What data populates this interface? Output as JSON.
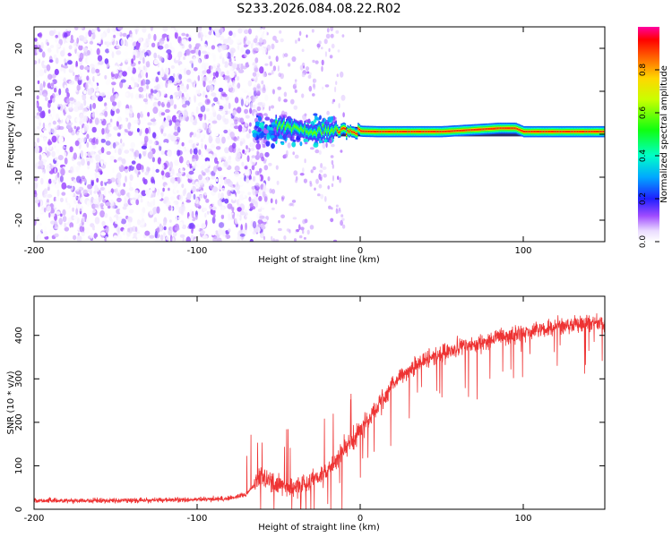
{
  "title": "S233.2026.084.08.22.R02",
  "chart_data": [
    {
      "type": "heatmap",
      "xlabel": "Height of straight line (km)",
      "ylabel": "Frequency (Hz)",
      "xlim": [
        -200,
        150
      ],
      "ylim": [
        -25,
        25
      ],
      "xticks": [
        -200,
        -100,
        0,
        100
      ],
      "yticks": [
        -20,
        -10,
        0,
        10,
        20
      ],
      "xtick_labels": [
        "-200",
        "-100",
        "0",
        "100"
      ],
      "ytick_labels": [
        "-20",
        "-10",
        "0",
        "10",
        "20"
      ],
      "colorbar": {
        "label": "Normalized spectral amplitude",
        "range": [
          0,
          1
        ],
        "ticks": [
          0.0,
          0.2,
          0.4,
          0.6,
          0.8
        ],
        "tick_labels": [
          "0.0",
          "0.2",
          "0.4",
          "0.6",
          "0.8"
        ]
      },
      "regions": [
        {
          "desc": "broadband noise",
          "x": [
            -200,
            -65
          ],
          "freq": [
            -25,
            25
          ],
          "amplitude": [
            0.0,
            0.15
          ]
        },
        {
          "desc": "transition",
          "x": [
            -65,
            -15
          ],
          "freq": [
            -6,
            6
          ],
          "amplitude": [
            0.1,
            0.4
          ]
        },
        {
          "desc": "carrier line",
          "x": [
            -15,
            150
          ],
          "freq": [
            -1,
            1.5
          ],
          "amplitude": [
            0.3,
            0.95
          ]
        }
      ],
      "carrier_center_points": [
        {
          "x": -50,
          "freq": 2.0
        },
        {
          "x": -40,
          "freq": 1.5
        },
        {
          "x": -30,
          "freq": 0.5
        },
        {
          "x": -20,
          "freq": 1.0
        },
        {
          "x": -10,
          "freq": 0.8
        },
        {
          "x": 0,
          "freq": 0.7
        },
        {
          "x": 10,
          "freq": 0.6
        },
        {
          "x": 50,
          "freq": 0.6
        },
        {
          "x": 85,
          "freq": 1.4
        },
        {
          "x": 95,
          "freq": 1.4
        },
        {
          "x": 100,
          "freq": 0.6
        },
        {
          "x": 150,
          "freq": 0.6
        }
      ]
    },
    {
      "type": "line",
      "xlabel": "Height of straight line (km)",
      "ylabel": "SNR (10 * v/v)",
      "xlim": [
        -200,
        150
      ],
      "ylim": [
        0,
        490
      ],
      "xticks": [
        -200,
        -100,
        0,
        100
      ],
      "yticks": [
        0,
        100,
        200,
        300,
        400
      ],
      "xtick_labels": [
        "-200",
        "-100",
        "0",
        "100"
      ],
      "ytick_labels": [
        "0",
        "100",
        "200",
        "300",
        "400"
      ],
      "color": "#ee3333",
      "series": [
        {
          "name": "SNR",
          "x": [
            -200,
            -150,
            -100,
            -80,
            -70,
            -60,
            -50,
            -40,
            -30,
            -20,
            -10,
            0,
            5,
            10,
            15,
            20,
            30,
            40,
            60,
            80,
            100,
            120,
            150
          ],
          "y": [
            20,
            20,
            22,
            25,
            35,
            75,
            55,
            50,
            65,
            90,
            140,
            180,
            210,
            230,
            260,
            290,
            320,
            345,
            370,
            390,
            405,
            420,
            430
          ]
        }
      ]
    }
  ]
}
